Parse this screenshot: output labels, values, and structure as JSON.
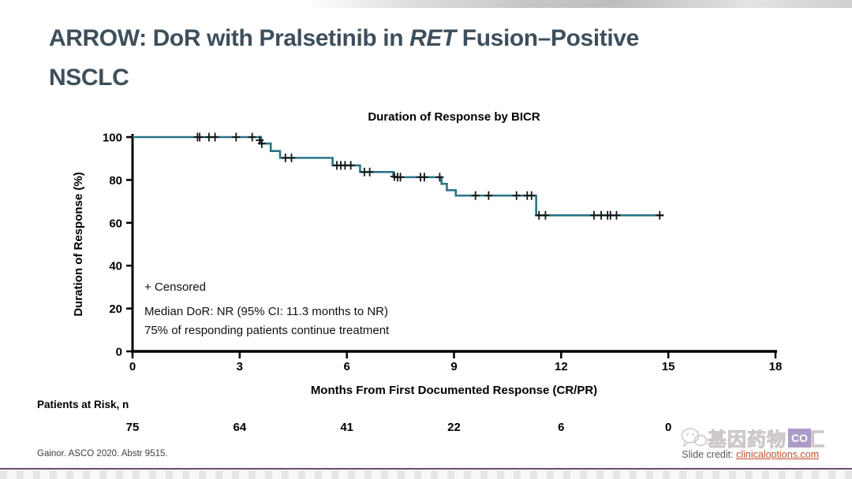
{
  "slide": {
    "title": {
      "part1": "ARROW: DoR with Pralsetinib in ",
      "italic": "RET",
      "part2": " Fusion–Positive",
      "line2": "NSCLC"
    },
    "title_color": "#3e4f5c"
  },
  "chart_data": {
    "type": "line",
    "subtype": "kaplan-meier-step",
    "title": "Duration of Response by BICR",
    "xlabel": "Months From First Documented Response (CR/PR)",
    "ylabel": "Duration of Response (%)",
    "xlim": [
      0,
      18
    ],
    "ylim": [
      0,
      100
    ],
    "x_ticks": [
      0,
      3,
      6,
      9,
      12,
      15,
      18
    ],
    "y_ticks": [
      0,
      20,
      40,
      60,
      80,
      100
    ],
    "grid": false,
    "curve_color": "#2a7487",
    "censor_color": "#141414",
    "series": [
      {
        "name": "DoR by BICR",
        "steps": [
          [
            0,
            100
          ],
          [
            3.6,
            97
          ],
          [
            3.87,
            93.5
          ],
          [
            4.13,
            90.3
          ],
          [
            5.6,
            86.8
          ],
          [
            6.37,
            83.7
          ],
          [
            7.3,
            81.3
          ],
          [
            8.65,
            78.2
          ],
          [
            8.8,
            75.2
          ],
          [
            9.05,
            72.7
          ],
          [
            11.3,
            63.5
          ]
        ],
        "end_month": 14.87,
        "censors": [
          [
            1.82,
            100
          ],
          [
            1.88,
            100
          ],
          [
            2.14,
            100
          ],
          [
            2.31,
            100
          ],
          [
            2.9,
            100
          ],
          [
            3.35,
            100
          ],
          [
            3.56,
            98.5
          ],
          [
            3.62,
            97
          ],
          [
            4.28,
            90.3
          ],
          [
            4.45,
            90.3
          ],
          [
            5.72,
            86.8
          ],
          [
            5.83,
            86.8
          ],
          [
            5.95,
            86.8
          ],
          [
            6.11,
            86.8
          ],
          [
            6.49,
            83.7
          ],
          [
            6.64,
            83.7
          ],
          [
            7.33,
            81.6
          ],
          [
            7.42,
            81.3
          ],
          [
            7.5,
            81.3
          ],
          [
            8.06,
            81.3
          ],
          [
            8.17,
            81.3
          ],
          [
            8.6,
            81.3
          ],
          [
            9.6,
            72.7
          ],
          [
            9.97,
            72.7
          ],
          [
            10.75,
            72.7
          ],
          [
            11.05,
            72.7
          ],
          [
            11.17,
            72.7
          ],
          [
            11.38,
            63.5
          ],
          [
            11.56,
            63.5
          ],
          [
            12.92,
            63.5
          ],
          [
            13.12,
            63.5
          ],
          [
            13.3,
            63.5
          ],
          [
            13.38,
            63.5
          ],
          [
            13.55,
            63.5
          ],
          [
            14.76,
            63.5
          ]
        ]
      }
    ],
    "annotations": {
      "censored_label": "+ Censored",
      "line1": "Median DoR: NR (95% CI: 11.3 months to NR)",
      "line2": "75% of responding patients continue treatment"
    }
  },
  "risk_table": {
    "label": "Patients at Risk, n",
    "months": [
      0,
      3,
      6,
      9,
      12,
      15
    ],
    "values": [
      75,
      64,
      41,
      22,
      6,
      0
    ]
  },
  "footer": {
    "reference": "Gainor. ASCO 2020. Abstr 9515.",
    "credit_label": "Slide credit: ",
    "credit_link": "clinicaloptions.com"
  },
  "watermark": {
    "cn_text": "基因药物",
    "logo_text": "CO",
    "cn_suffix": "汇"
  }
}
